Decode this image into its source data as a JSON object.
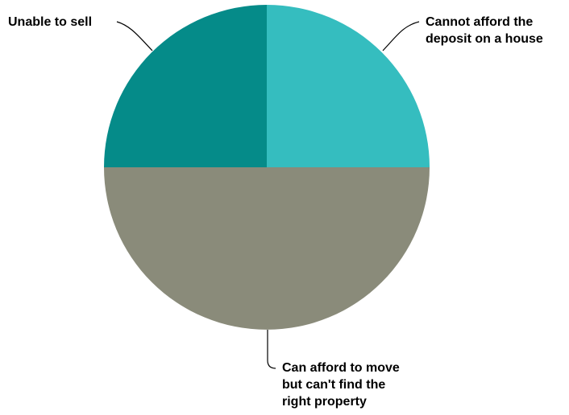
{
  "chart_data": {
    "type": "pie",
    "title": "",
    "slices": [
      {
        "label_lines": [
          "Cannot afford the",
          "deposit on a house"
        ],
        "value": 25,
        "color": "#35bdbf"
      },
      {
        "label_lines": [
          "Can afford to move",
          "but can't find the",
          "right property"
        ],
        "value": 50,
        "color": "#8a8b7a"
      },
      {
        "label_lines": [
          "Unable to sell"
        ],
        "value": 25,
        "color": "#058b89"
      }
    ],
    "legend": "none",
    "start_angle": "12 o'clock",
    "direction": "clockwise"
  }
}
